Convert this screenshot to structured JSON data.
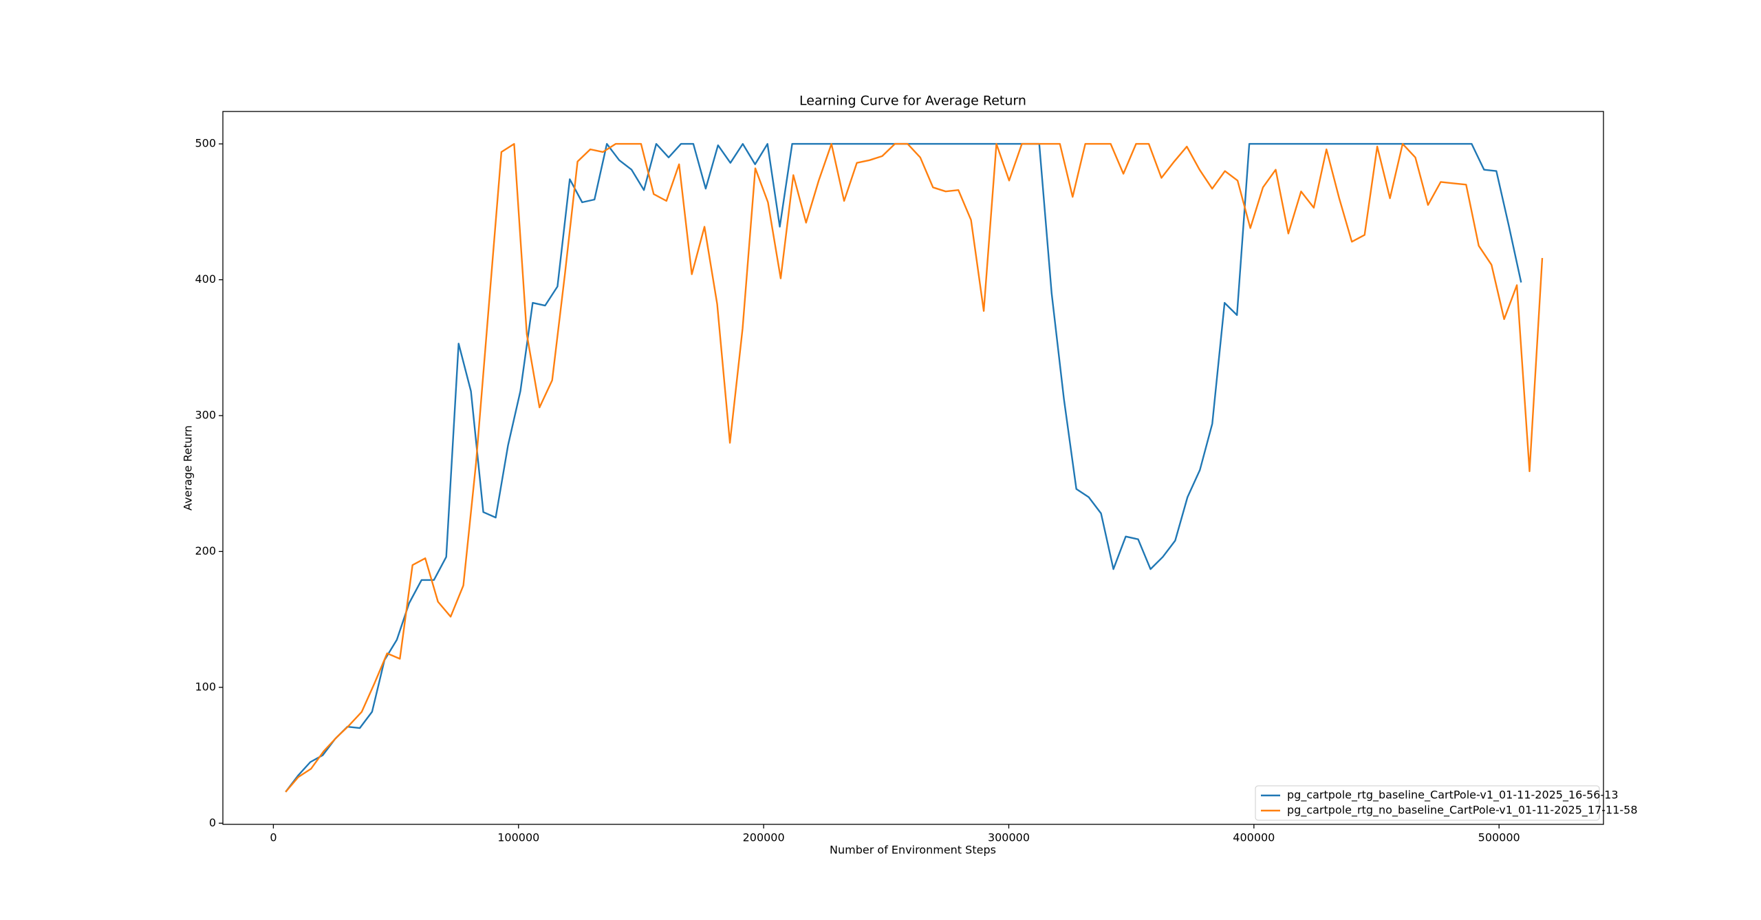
{
  "chart_data": {
    "type": "line",
    "title": "Learning Curve for Average Return",
    "x_label": "Number of Environment Steps",
    "y_label": "Average Return",
    "xlim": [
      -20600,
      542600
    ],
    "ylim": [
      -0.85,
      523.85
    ],
    "xticks": [
      0,
      100000,
      200000,
      300000,
      400000,
      500000
    ],
    "yticks": [
      0,
      100,
      200,
      300,
      400,
      500
    ],
    "legend": "lower right",
    "series": [
      {
        "name": "pg_cartpole_rtg_baseline_CartPole-v1_01-11-2025_16-56-13",
        "color": "#1f77b4",
        "x": [
          5000,
          10040,
          15080,
          20120,
          25160,
          30200,
          35240,
          40280,
          45320,
          50360,
          55400,
          60440,
          65480,
          70520,
          75560,
          80600,
          85640,
          90680,
          95720,
          100760,
          105800,
          110840,
          115880,
          120920,
          125960,
          131000,
          136040,
          141080,
          146120,
          151160,
          156200,
          161240,
          166280,
          171320,
          176360,
          181400,
          186440,
          191480,
          196520,
          201560,
          206600,
          211640,
          216680,
          221720,
          226760,
          231800,
          236840,
          241880,
          246920,
          251960,
          257000,
          262040,
          267080,
          272120,
          277160,
          282200,
          287240,
          292280,
          297320,
          302360,
          307400,
          312440,
          317480,
          322520,
          327560,
          332600,
          337640,
          342680,
          347720,
          352760,
          357800,
          362840,
          367880,
          372920,
          377960,
          383000,
          388040,
          393080,
          398120,
          403160,
          408200,
          413240,
          418280,
          423320,
          428360,
          433400,
          438440,
          443480,
          448520,
          453560,
          458600,
          463640,
          468680,
          473720,
          478760,
          483800,
          488840,
          493880,
          498920,
          503960,
          509000
        ],
        "values": [
          23,
          35,
          45,
          50,
          62,
          71,
          70,
          82,
          120,
          135,
          162,
          179,
          179,
          196,
          353,
          318,
          229,
          225,
          278,
          318,
          383,
          381,
          395,
          474,
          457,
          459,
          500,
          488,
          481,
          466,
          500,
          490,
          500,
          500,
          467,
          499,
          486,
          500,
          485,
          500,
          439,
          500,
          500,
          500,
          500,
          500,
          500,
          500,
          500,
          500,
          500,
          500,
          500,
          500,
          500,
          500,
          500,
          500,
          500,
          500,
          500,
          500,
          390,
          312,
          246,
          240,
          228,
          187,
          211,
          209,
          187,
          196,
          208,
          240,
          260,
          294,
          383,
          374,
          500,
          500,
          500,
          500,
          500,
          500,
          500,
          500,
          500,
          500,
          500,
          500,
          500,
          500,
          500,
          500,
          500,
          500,
          500,
          481,
          480,
          440,
          398
        ]
      },
      {
        "name": "pg_cartpole_rtg_no_baseline_CartPole-v1_01-11-2025_17-11-58",
        "color": "#ff7f0e",
        "x": [
          5000,
          10178,
          15356,
          20534,
          25712,
          30890,
          36068,
          41246,
          46424,
          51602,
          56780,
          61958,
          67136,
          72314,
          77492,
          82670,
          87848,
          93026,
          98204,
          103382,
          108560,
          113738,
          118916,
          124094,
          129272,
          134450,
          139628,
          144806,
          149984,
          155162,
          160340,
          165518,
          170696,
          175874,
          181052,
          186230,
          191408,
          196586,
          201764,
          206942,
          212120,
          217298,
          222476,
          227654,
          232832,
          238010,
          243188,
          248366,
          253544,
          258722,
          263900,
          269078,
          274256,
          279434,
          284612,
          289790,
          294968,
          300146,
          305324,
          310502,
          315680,
          320858,
          326036,
          331214,
          336392,
          341570,
          346748,
          351926,
          357104,
          362282,
          367460,
          372638,
          377816,
          382994,
          388172,
          393350,
          398528,
          403706,
          408884,
          414062,
          419240,
          424418,
          429596,
          434774,
          439952,
          445130,
          450308,
          455486,
          460664,
          465842,
          471020,
          476198,
          481376,
          486554,
          491732,
          496910,
          502088,
          507266,
          512444,
          517622
        ],
        "values": [
          23,
          34,
          40,
          53,
          63,
          72,
          82,
          103,
          125,
          121,
          190,
          195,
          163,
          152,
          175,
          265,
          380,
          494,
          500,
          360,
          306,
          326,
          404,
          487,
          496,
          494,
          500,
          500,
          500,
          463,
          458,
          485,
          404,
          439,
          382,
          280,
          364,
          482,
          457,
          401,
          477,
          442,
          473,
          500,
          458,
          486,
          488,
          491,
          500,
          500,
          490,
          468,
          465,
          466,
          444,
          377,
          500,
          473,
          500,
          500,
          500,
          500,
          461,
          500,
          500,
          500,
          478,
          500,
          500,
          475,
          487,
          498,
          481,
          467,
          480,
          473,
          438,
          468,
          481,
          434,
          465,
          453,
          496,
          460,
          428,
          433,
          498,
          460,
          500,
          490,
          455,
          472,
          471,
          470,
          425,
          411,
          371,
          396,
          259,
          416
        ]
      }
    ]
  }
}
